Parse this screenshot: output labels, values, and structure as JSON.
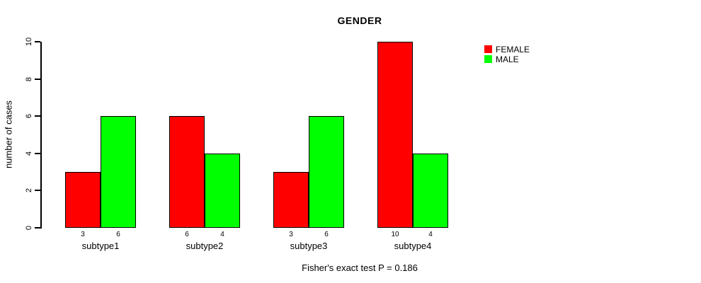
{
  "chart_data": {
    "type": "bar",
    "title": "GENDER",
    "ylabel": "number of cases",
    "xlabel": "",
    "ylim": [
      0,
      10
    ],
    "yticks": [
      0,
      2,
      4,
      6,
      8,
      10
    ],
    "categories": [
      "subtype1",
      "subtype2",
      "subtype3",
      "subtype4"
    ],
    "series": [
      {
        "name": "FEMALE",
        "color": "#ff0000",
        "values": [
          3,
          6,
          3,
          10
        ]
      },
      {
        "name": "MALE",
        "color": "#00ff00",
        "values": [
          6,
          4,
          6,
          4
        ]
      }
    ],
    "bar_value_labels_shown": true,
    "grid": false,
    "legend_position": "right",
    "annotation": "Fisher's exact test P = 0.186"
  }
}
